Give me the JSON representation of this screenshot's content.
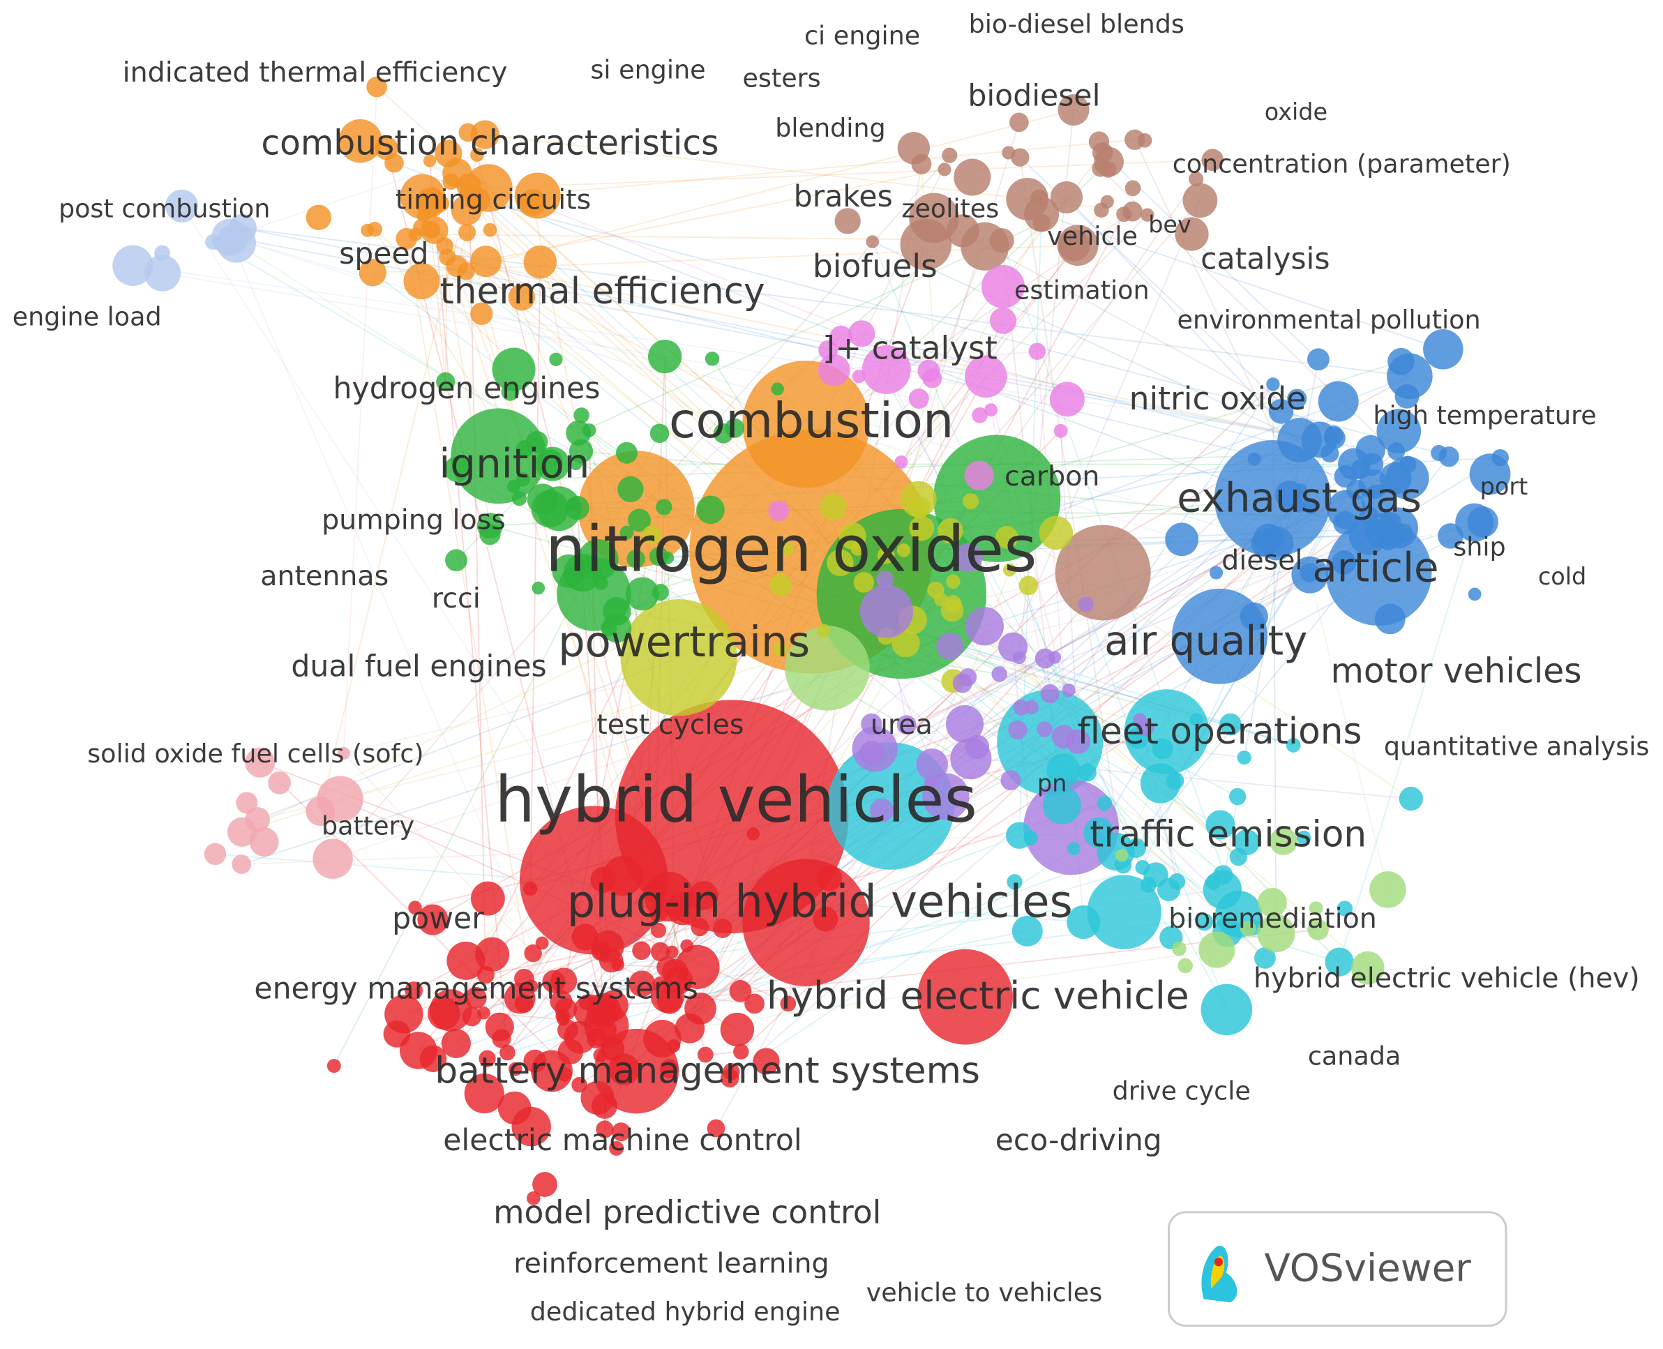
{
  "nodes": [
    {
      "label": "indicated thermal efficiency"
    },
    {
      "label": "ci engine"
    },
    {
      "label": "bio-diesel blends"
    },
    {
      "label": "si engine"
    },
    {
      "label": "esters"
    },
    {
      "label": "biodiesel"
    },
    {
      "label": "oxide"
    },
    {
      "label": "combustion characteristics"
    },
    {
      "label": "blending"
    },
    {
      "label": "concentration (parameter)"
    },
    {
      "label": "post combustion"
    },
    {
      "label": "timing circuits"
    },
    {
      "label": "brakes"
    },
    {
      "label": "zeolites"
    },
    {
      "label": "vehicle"
    },
    {
      "label": "bev"
    },
    {
      "label": "speed"
    },
    {
      "label": "catalysis"
    },
    {
      "label": "biofuels"
    },
    {
      "label": "thermal efficiency"
    },
    {
      "label": "estimation"
    },
    {
      "label": "engine load"
    },
    {
      "label": "environmental pollution"
    },
    {
      "label": "]+ catalyst"
    },
    {
      "label": "hydrogen engines"
    },
    {
      "label": "nitric oxide"
    },
    {
      "label": "combustion"
    },
    {
      "label": "high temperature"
    },
    {
      "label": "ignition"
    },
    {
      "label": "carbon"
    },
    {
      "label": "exhaust gas"
    },
    {
      "label": "port"
    },
    {
      "label": "pumping loss"
    },
    {
      "label": "nitrogen oxides"
    },
    {
      "label": "diesel"
    },
    {
      "label": "article"
    },
    {
      "label": "ship"
    },
    {
      "label": "cold"
    },
    {
      "label": "antennas"
    },
    {
      "label": "rcci"
    },
    {
      "label": "powertrains"
    },
    {
      "label": "air quality"
    },
    {
      "label": "dual fuel engines"
    },
    {
      "label": "motor vehicles"
    },
    {
      "label": "test cycles"
    },
    {
      "label": "urea"
    },
    {
      "label": "fleet operations"
    },
    {
      "label": "solid oxide fuel cells (sofc)"
    },
    {
      "label": "quantitative analysis"
    },
    {
      "label": "pn"
    },
    {
      "label": "hybrid vehicles"
    },
    {
      "label": "battery"
    },
    {
      "label": "traffic emission"
    },
    {
      "label": "plug-in hybrid vehicles"
    },
    {
      "label": "power"
    },
    {
      "label": "bioremediation"
    },
    {
      "label": "hybrid electric vehicle (hev)"
    },
    {
      "label": "energy management systems"
    },
    {
      "label": "hybrid electric vehicle"
    },
    {
      "label": "canada"
    },
    {
      "label": "battery management systems"
    },
    {
      "label": "drive cycle"
    },
    {
      "label": "electric machine control"
    },
    {
      "label": "eco-driving"
    },
    {
      "label": "model predictive control"
    },
    {
      "label": "reinforcement learning"
    },
    {
      "label": "vehicle to vehicles"
    },
    {
      "label": "dedicated hybrid engine"
    }
  ],
  "logo": "VOSviewer"
}
